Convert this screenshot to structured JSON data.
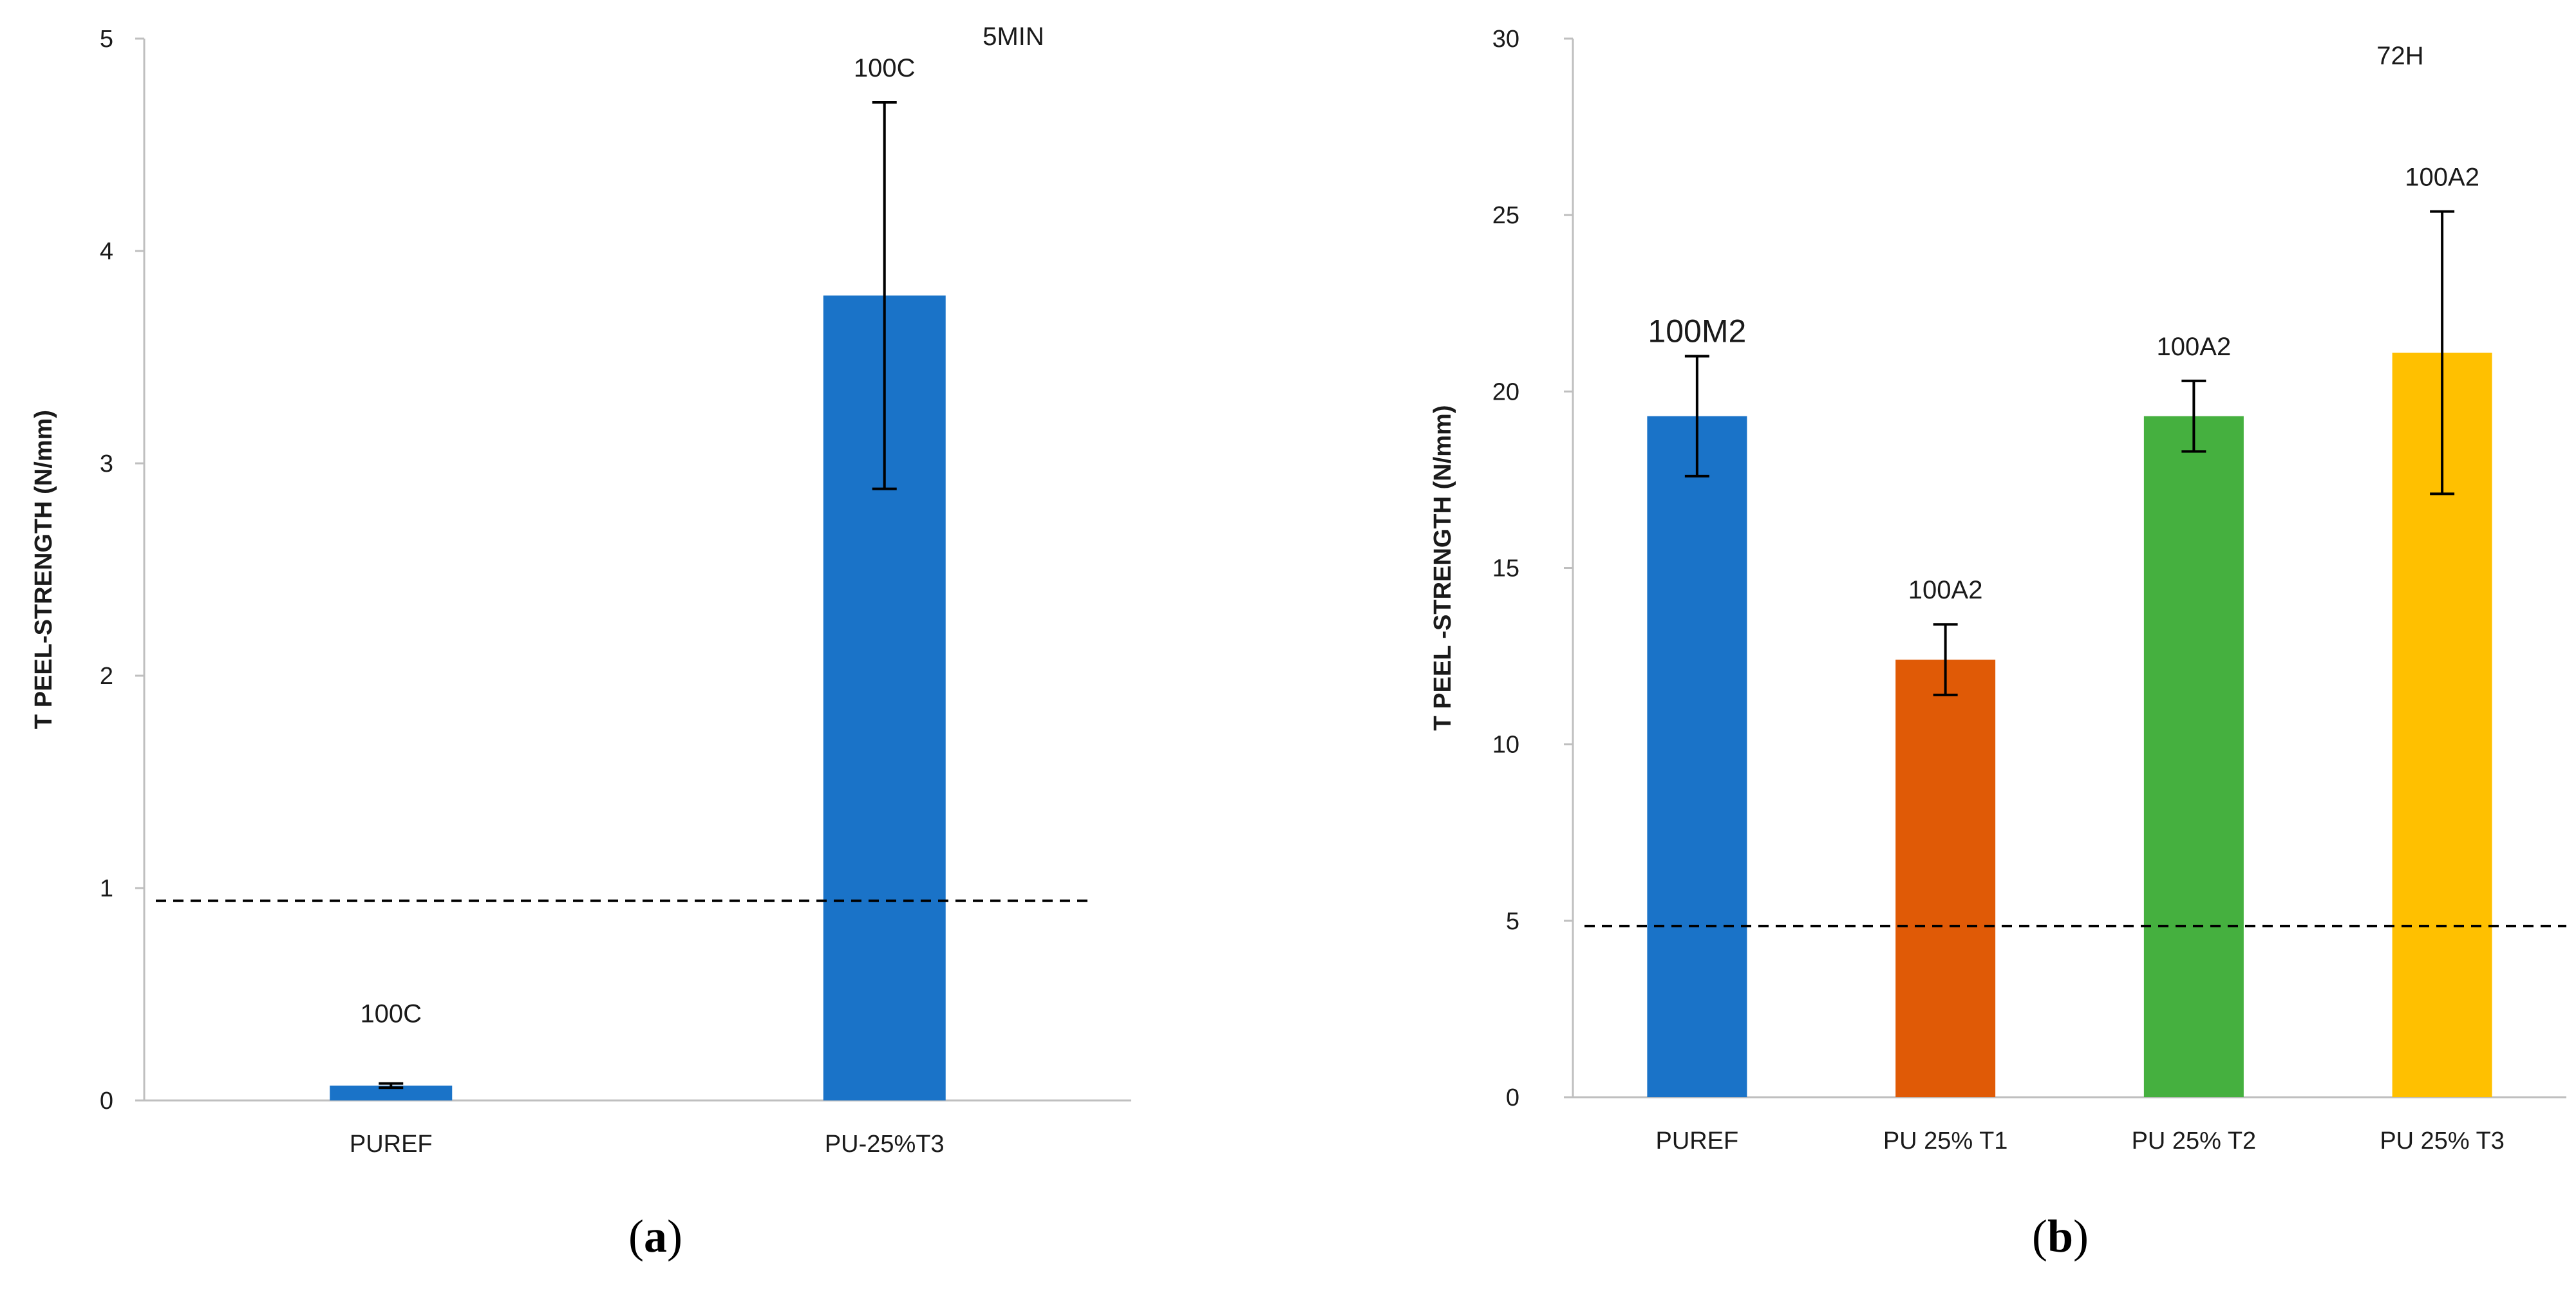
{
  "chart_data": [
    {
      "type": "bar",
      "panel_label": "a",
      "note": "5MIN",
      "ylabel": "T PEEL-STRENGTH (N/mm)",
      "xlabel": "",
      "ylim": [
        0,
        5
      ],
      "yticks": [
        0,
        1,
        2,
        3,
        4,
        5
      ],
      "categories": [
        "PUREF",
        "PU-25%T3"
      ],
      "values": [
        0.07,
        3.79
      ],
      "error_low": [
        0.06,
        2.88
      ],
      "error_high": [
        0.08,
        4.7
      ],
      "bar_labels": [
        "100C",
        "100C"
      ],
      "colors": [
        "#1a73c8",
        "#1a73c8"
      ],
      "reference_line": 0.94,
      "grid": false
    },
    {
      "type": "bar",
      "panel_label": "b",
      "note": "72H",
      "ylabel": "T PEEL -STRENGTH (N/mm)",
      "xlabel": "",
      "ylim": [
        0,
        30
      ],
      "yticks": [
        0,
        5,
        10,
        15,
        20,
        25,
        30
      ],
      "categories": [
        "PUREF",
        "PU 25% T1",
        "PU 25% T2",
        "PU 25% T3"
      ],
      "values": [
        19.3,
        12.4,
        19.3,
        21.1
      ],
      "error_low": [
        17.6,
        11.4,
        18.3,
        17.1
      ],
      "error_high": [
        21.0,
        13.4,
        20.3,
        25.1
      ],
      "bar_labels": [
        "100M2",
        "100A2",
        "100A2",
        "100A2"
      ],
      "colors": [
        "#1a73c8",
        "#e05a06",
        "#45b03f",
        "#ffc000"
      ],
      "reference_line": 4.85,
      "grid": false
    }
  ]
}
